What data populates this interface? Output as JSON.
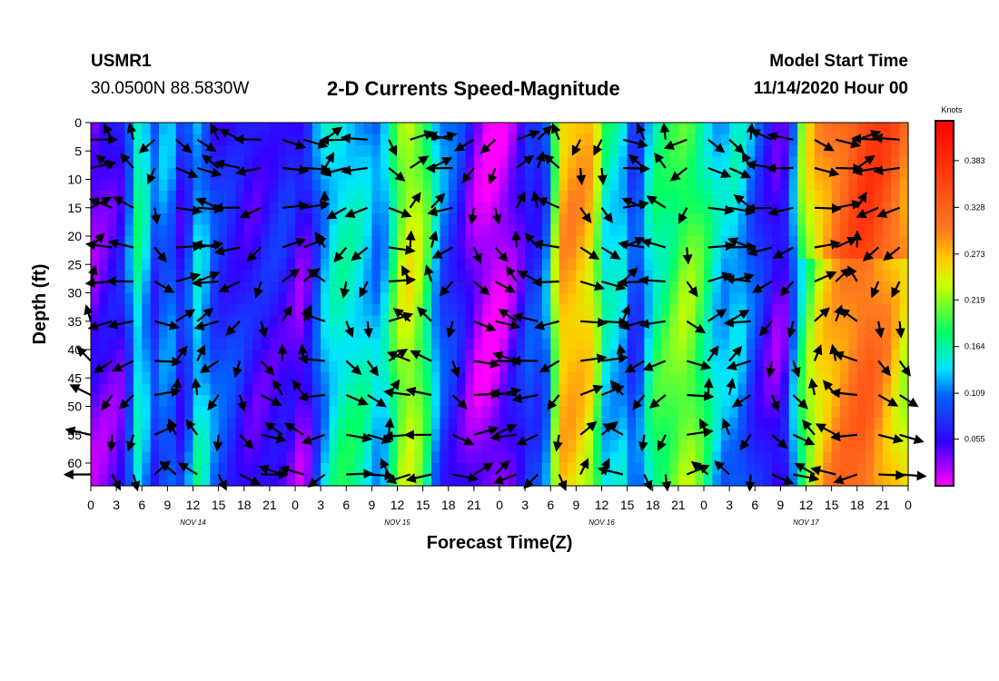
{
  "station": {
    "id": "USMR1",
    "location": "30.0500N 88.5830W"
  },
  "title": "2-D Currents Speed-Magnitude",
  "model_start": {
    "label": "Model Start Time",
    "value": "11/14/2020 Hour 00"
  },
  "chart_data": {
    "type": "heatmap",
    "title": "2-D Currents Speed-Magnitude",
    "xlabel": "Forecast Time(Z)",
    "ylabel": "Depth (ft)",
    "x_hours_range": [
      0,
      96
    ],
    "y_depth_range_ft": [
      0,
      64
    ],
    "y_reversed": true,
    "y_ticks": [
      "0",
      "5",
      "10",
      "15",
      "20",
      "25",
      "30",
      "35",
      "40",
      "45",
      "50",
      "55",
      "60"
    ],
    "x_ticks": [
      "0",
      "3",
      "6",
      "9",
      "12",
      "15",
      "18",
      "21",
      "0",
      "3",
      "6",
      "9",
      "12",
      "15",
      "18",
      "21",
      "0",
      "3",
      "6",
      "9",
      "12",
      "15",
      "18",
      "21",
      "0",
      "3",
      "6",
      "9",
      "12",
      "15",
      "18",
      "21",
      "0"
    ],
    "day_labels": [
      {
        "label": "NOV 14",
        "hour": 12
      },
      {
        "label": "NOV 15",
        "hour": 36
      },
      {
        "label": "NOV 16",
        "hour": 60
      },
      {
        "label": "NOV 17",
        "hour": 84
      }
    ],
    "colorbar": {
      "unit": "Knots",
      "range": [
        0,
        0.43
      ],
      "ticks": [
        "0.383",
        "0.328",
        "0.273",
        "0.219",
        "0.164",
        "0.109",
        "0.055"
      ],
      "tick_values": [
        0.383,
        0.328,
        0.273,
        0.219,
        0.164,
        0.109,
        0.055
      ]
    },
    "vector_grid": {
      "hours": [
        0,
        2.5,
        5,
        7.5,
        10,
        12.5,
        15,
        17.5,
        20,
        22.5,
        25,
        27.5,
        30,
        32.5,
        35,
        37.5,
        40,
        42.5,
        45,
        47.5,
        50,
        52.5,
        55,
        57.5,
        60,
        62.5,
        65,
        67.5,
        70,
        72.5,
        75,
        77.5,
        80,
        82.5,
        85,
        87.5,
        90,
        92.5,
        95
      ],
      "depths_ft": [
        3,
        8,
        15,
        22,
        28,
        35,
        42,
        48,
        55,
        62
      ]
    },
    "approx_speed_by_period": [
      {
        "hours": [
          0,
          4
        ],
        "knots": 0.03
      },
      {
        "hours": [
          4,
          9
        ],
        "knots": 0.15
      },
      {
        "hours": [
          9,
          24
        ],
        "knots": 0.07
      },
      {
        "hours": [
          24,
          27
        ],
        "knots": 0.05
      },
      {
        "hours": [
          27,
          35
        ],
        "knots": 0.17
      },
      {
        "hours": [
          35,
          45
        ],
        "knots": 0.2
      },
      {
        "hours": [
          45,
          51
        ],
        "knots": 0.03
      },
      {
        "hours": [
          51,
          54
        ],
        "knots": 0.08
      },
      {
        "hours": [
          54,
          63
        ],
        "knots": 0.26
      },
      {
        "hours": [
          63,
          80
        ],
        "knots": 0.17
      },
      {
        "hours": [
          80,
          83
        ],
        "knots": 0.08
      },
      {
        "hours": [
          83,
          96
        ],
        "knots": 0.3
      }
    ]
  }
}
